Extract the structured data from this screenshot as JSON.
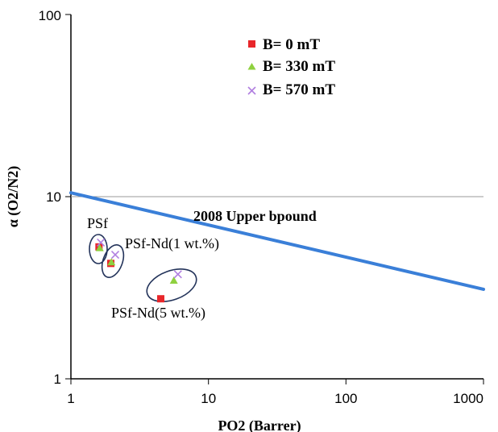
{
  "chart_data": {
    "type": "scatter",
    "xscale": "log",
    "yscale": "log",
    "xlim": [
      1,
      1000
    ],
    "ylim": [
      1,
      100
    ],
    "xlabel": "PO2 (Barrer)",
    "ylabel": "α (O2/N2)",
    "x_ticks": [
      "1",
      "10",
      "100",
      "1000"
    ],
    "y_ticks": [
      "1",
      "10",
      "100"
    ],
    "legend_position": "top-center",
    "grid": "horizontal line at y = 10 only",
    "series": [
      {
        "name": "B= 0 mT",
        "marker": "square",
        "color": "#e8262a",
        "points": [
          {
            "x": 1.6,
            "y": 5.3
          },
          {
            "x": 1.95,
            "y": 4.3
          },
          {
            "x": 4.5,
            "y": 2.75
          }
        ]
      },
      {
        "name": "B= 330 mT",
        "marker": "triangle",
        "color": "#8fd13f",
        "points": [
          {
            "x": 1.62,
            "y": 5.2
          },
          {
            "x": 1.97,
            "y": 4.35
          },
          {
            "x": 5.6,
            "y": 3.45
          }
        ]
      },
      {
        "name": "B= 570 mT",
        "marker": "x",
        "color": "#b07fe0",
        "points": [
          {
            "x": 1.65,
            "y": 5.6
          },
          {
            "x": 2.1,
            "y": 4.8
          },
          {
            "x": 6.0,
            "y": 3.75
          }
        ]
      }
    ],
    "upper_bound": {
      "label": "2008 Upper bpound",
      "color": "#3a7fd8",
      "points": [
        {
          "x": 1,
          "y": 10.5
        },
        {
          "x": 1000,
          "y": 3.1
        }
      ]
    },
    "annotations": [
      {
        "label": "PSf",
        "x": 1.62,
        "y": 5.35
      },
      {
        "label": "PSf-Nd(1 wt.%)",
        "x": 2.0,
        "y": 4.5
      },
      {
        "label": "PSf-Nd(5 wt.%)",
        "x": 5.4,
        "y": 3.3
      }
    ]
  }
}
